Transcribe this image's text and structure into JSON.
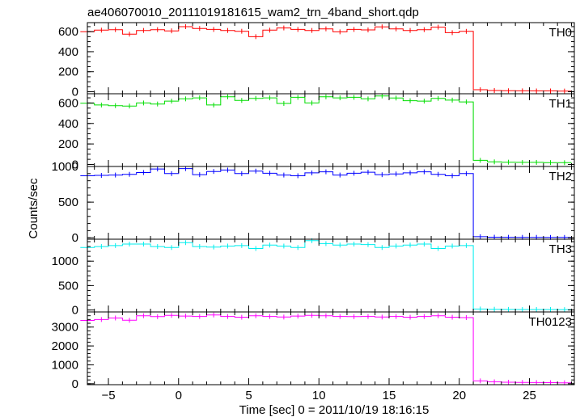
{
  "chart_data": {
    "type": "line",
    "title": "ae406070010_20111019181615_wam2_trn_4band_short.qdp",
    "xlabel": "Time [sec] 0 = 2011/10/19 18:16:15",
    "ylabel": "Counts/sec",
    "xlim": [
      -6.5,
      28.2
    ],
    "xticks": [
      -5,
      0,
      5,
      10,
      15,
      20,
      25
    ],
    "x": [
      -6.5,
      -5.5,
      -4.5,
      -3.5,
      -2.5,
      -1.5,
      -0.5,
      0.5,
      1.5,
      2.5,
      3.5,
      4.5,
      5.5,
      6.5,
      7.5,
      8.5,
      9.5,
      10.5,
      11.5,
      12.5,
      13.5,
      14.5,
      15.5,
      16.5,
      17.5,
      18.5,
      19.5,
      20.5,
      21.5,
      22.5,
      23.5,
      24.5,
      25.5,
      26.5,
      27.5
    ],
    "bin_width": 1.0,
    "panels": [
      {
        "name": "TH0",
        "color": "#ff0000",
        "ylim": [
          -20,
          690
        ],
        "yticks": [
          0,
          200,
          400,
          600
        ],
        "values": [
          600,
          615,
          620,
          575,
          612,
          620,
          608,
          650,
          632,
          622,
          612,
          604,
          550,
          615,
          637,
          622,
          612,
          628,
          598,
          622,
          617,
          648,
          628,
          612,
          620,
          645,
          590,
          603,
          20,
          12,
          10,
          9,
          8,
          8,
          7
        ]
      },
      {
        "name": "TH1",
        "color": "#00dd00",
        "ylim": [
          -20,
          690
        ],
        "yticks": [
          0,
          200,
          400,
          600
        ],
        "values": [
          598,
          580,
          574,
          570,
          600,
          590,
          618,
          640,
          650,
          580,
          660,
          625,
          645,
          650,
          595,
          655,
          600,
          660,
          650,
          655,
          640,
          668,
          648,
          622,
          618,
          645,
          628,
          610,
          40,
          25,
          22,
          20,
          20,
          18,
          17
        ]
      },
      {
        "name": "TH2",
        "color": "#0000ff",
        "ylim": [
          -20,
          1000
        ],
        "yticks": [
          0,
          500,
          1000
        ],
        "values": [
          870,
          875,
          880,
          890,
          915,
          965,
          900,
          970,
          885,
          930,
          950,
          900,
          935,
          905,
          880,
          870,
          910,
          925,
          880,
          905,
          920,
          885,
          895,
          910,
          925,
          890,
          870,
          900,
          15,
          8,
          7,
          6,
          6,
          5,
          5
        ]
      },
      {
        "name": "TH3",
        "color": "#00eeee",
        "ylim": [
          -40,
          1450
        ],
        "yticks": [
          0,
          500,
          1000
        ],
        "values": [
          1280,
          1300,
          1320,
          1350,
          1350,
          1300,
          1280,
          1380,
          1300,
          1290,
          1310,
          1320,
          1260,
          1330,
          1310,
          1280,
          1420,
          1360,
          1330,
          1350,
          1340,
          1280,
          1310,
          1330,
          1350,
          1260,
          1310,
          1320,
          20,
          15,
          12,
          10,
          10,
          10,
          8
        ]
      },
      {
        "name": "TH0123",
        "color": "#ff00ff",
        "ylim": [
          -50,
          3800
        ],
        "yticks": [
          0,
          1000,
          2000,
          3000
        ],
        "values": [
          3350,
          3400,
          3480,
          3360,
          3600,
          3550,
          3620,
          3580,
          3560,
          3640,
          3560,
          3520,
          3600,
          3560,
          3530,
          3580,
          3620,
          3600,
          3560,
          3550,
          3560,
          3530,
          3560,
          3520,
          3560,
          3600,
          3520,
          3500,
          150,
          100,
          80,
          70,
          60,
          55,
          50
        ]
      }
    ]
  }
}
